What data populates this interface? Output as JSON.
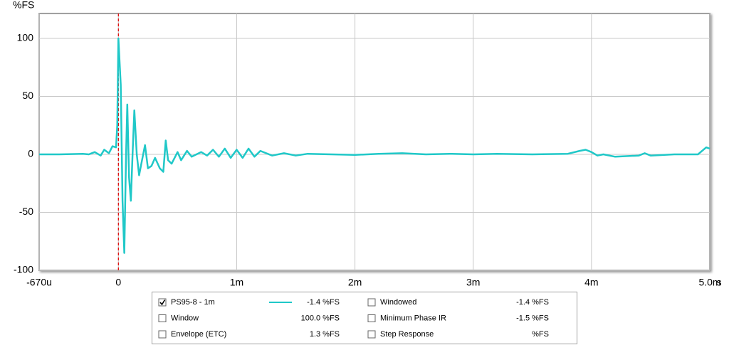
{
  "chart_data": {
    "type": "line",
    "y_axis_label": "%FS",
    "x_axis_unit": "s",
    "xlim": [
      -0.67,
      5.0
    ],
    "ylim": [
      -100,
      121.5
    ],
    "xticks": [
      {
        "value": -0.67,
        "label": "-670u"
      },
      0,
      {
        "value": 1,
        "label": "1m"
      },
      {
        "value": 2,
        "label": "2m"
      },
      {
        "value": 3,
        "label": "3m"
      },
      {
        "value": 4,
        "label": "4m"
      },
      {
        "value": 5,
        "label": "5.0m"
      }
    ],
    "yticks": [
      -100,
      -50,
      0,
      50,
      100
    ],
    "grid": true,
    "cursor_x": 0,
    "cursor_color": "#e00000",
    "series": [
      {
        "name": "PS95-8 - 1m",
        "color": "#20c8c8",
        "readout": "-1.4 %FS",
        "checked": true,
        "x": [
          -0.67,
          -0.5,
          -0.3,
          -0.25,
          -0.2,
          -0.15,
          -0.12,
          -0.08,
          -0.05,
          -0.02,
          -0.01,
          0,
          0.02,
          0.035,
          0.05,
          0.065,
          0.075,
          0.09,
          0.105,
          0.12,
          0.135,
          0.155,
          0.175,
          0.2,
          0.225,
          0.25,
          0.28,
          0.31,
          0.35,
          0.38,
          0.4,
          0.42,
          0.45,
          0.5,
          0.53,
          0.58,
          0.62,
          0.7,
          0.75,
          0.8,
          0.85,
          0.9,
          0.95,
          1.0,
          1.05,
          1.1,
          1.15,
          1.2,
          1.3,
          1.4,
          1.5,
          1.6,
          1.8,
          2.0,
          2.2,
          2.4,
          2.6,
          2.8,
          3.0,
          3.2,
          3.5,
          3.8,
          3.9,
          3.95,
          4.0,
          4.05,
          4.1,
          4.2,
          4.4,
          4.45,
          4.5,
          4.7,
          4.9,
          4.97,
          5.0
        ],
        "values": [
          0,
          0,
          0.5,
          0,
          2,
          -1,
          4,
          1,
          7,
          6,
          25,
          100,
          60,
          -40,
          -85,
          0,
          43,
          -20,
          -40,
          0,
          38,
          0,
          -18,
          -5,
          8,
          -12,
          -10,
          -3,
          -12,
          -15,
          12,
          -5,
          -8,
          2,
          -5,
          3,
          -2,
          2,
          -1,
          4,
          -2,
          5,
          -3,
          4,
          -3,
          5,
          -2,
          3,
          -1,
          1,
          -1,
          0.5,
          0,
          -0.5,
          0.5,
          1,
          0,
          0.5,
          0,
          0.5,
          0,
          0.5,
          3,
          4,
          2,
          -1,
          0,
          -2,
          -1,
          1,
          -1,
          0,
          0,
          6,
          5
        ]
      }
    ],
    "other_traces": [
      {
        "name": "Window",
        "readout": "100.0 %FS",
        "color": "#1a1acc",
        "checked": false
      },
      {
        "name": "Envelope (ETC)",
        "readout": "1.3 %FS",
        "color": "#0a5a6a",
        "checked": false
      },
      {
        "name": "Windowed",
        "readout": "-1.4 %FS",
        "color": "#20c8c8",
        "checked": false
      },
      {
        "name": "Minimum Phase IR",
        "readout": "-1.5 %FS",
        "color": "#808080",
        "checked": false
      },
      {
        "name": "Step Response",
        "readout": "%FS",
        "color": "#0a5a6a",
        "checked": false
      }
    ]
  }
}
